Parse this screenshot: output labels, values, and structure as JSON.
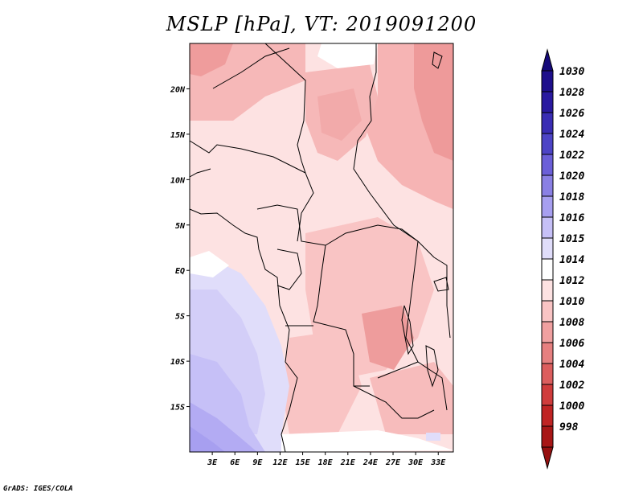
{
  "title": "MSLP [hPa], VT: 2019091200",
  "credit": "GrADS: IGES/COLA",
  "map": {
    "lon_range": [
      0,
      35
    ],
    "lat_range": [
      -20,
      25
    ],
    "lon_ticks": [
      {
        "label": "3E",
        "lon": 3
      },
      {
        "label": "6E",
        "lon": 6
      },
      {
        "label": "9E",
        "lon": 9
      },
      {
        "label": "12E",
        "lon": 12
      },
      {
        "label": "15E",
        "lon": 15
      },
      {
        "label": "18E",
        "lon": 18
      },
      {
        "label": "21E",
        "lon": 21
      },
      {
        "label": "24E",
        "lon": 24
      },
      {
        "label": "27E",
        "lon": 27
      },
      {
        "label": "30E",
        "lon": 30
      },
      {
        "label": "33E",
        "lon": 33
      }
    ],
    "lat_ticks": [
      {
        "label": "20N",
        "lat": 20
      },
      {
        "label": "15N",
        "lat": 15
      },
      {
        "label": "10N",
        "lat": 10
      },
      {
        "label": "5N",
        "lat": 5
      },
      {
        "label": "EQ",
        "lat": 0
      },
      {
        "label": "5S",
        "lat": -5
      },
      {
        "label": "10S",
        "lat": -10
      },
      {
        "label": "15S",
        "lat": -15
      }
    ]
  },
  "colorbar": {
    "levels": [
      {
        "label": "1030",
        "color": "#1e0f8c"
      },
      {
        "label": "1028",
        "color": "#2a1aa0"
      },
      {
        "label": "1026",
        "color": "#3a2db4"
      },
      {
        "label": "1024",
        "color": "#4d44c6"
      },
      {
        "label": "1022",
        "color": "#6b5fd8"
      },
      {
        "label": "1020",
        "color": "#8a80e4"
      },
      {
        "label": "1018",
        "color": "#a79ff0"
      },
      {
        "label": "1016",
        "color": "#c6c0f7"
      },
      {
        "label": "1015",
        "color": "#e0ddfa"
      },
      {
        "label": "1014",
        "color": "#ffffff"
      },
      {
        "label": "1012",
        "color": "#fde2e2"
      },
      {
        "label": "1010",
        "color": "#f9c4c4"
      },
      {
        "label": "1008",
        "color": "#f0a0a0"
      },
      {
        "label": "1006",
        "color": "#e68080"
      },
      {
        "label": "1004",
        "color": "#dc5e5e"
      },
      {
        "label": "1002",
        "color": "#d03c3c"
      },
      {
        "label": "1000",
        "color": "#c02424"
      },
      {
        "label": "998",
        "color": "#a81616"
      }
    ],
    "top_color": "#160a7a",
    "bottom_color": "#961010"
  }
}
